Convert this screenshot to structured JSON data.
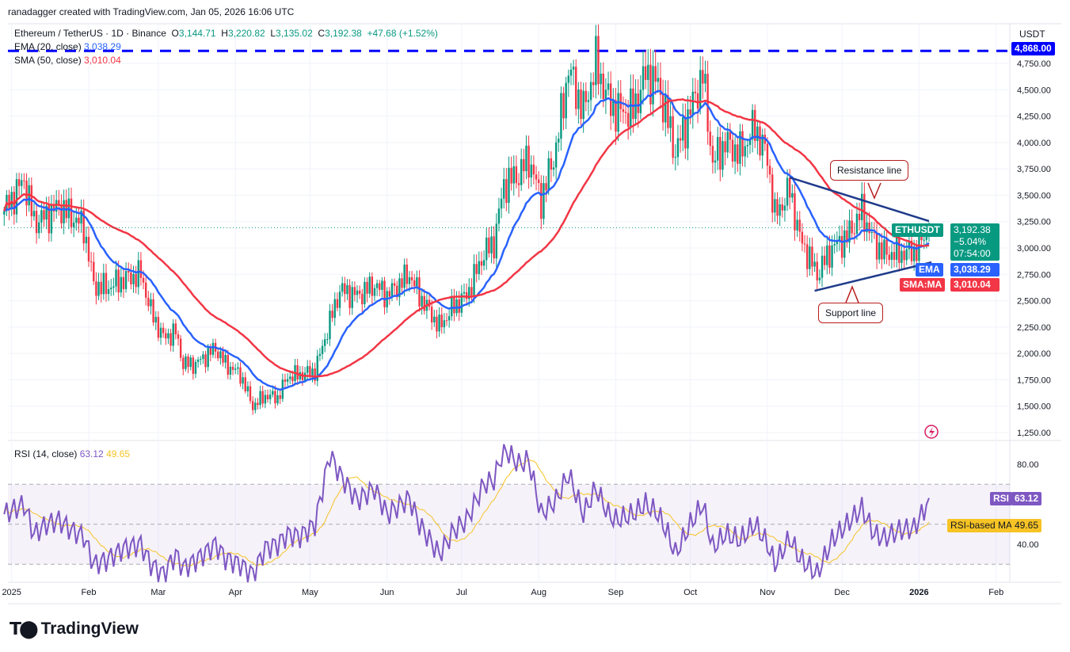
{
  "header": "ranadagger created with TradingView.com, Jan 05, 2026 16:06 UTC",
  "symbol": {
    "name": "Ethereum / TetherUS · 1D · Binance",
    "o_label": "O",
    "o": "3,144.71",
    "h_label": "H",
    "h": "3,220.82",
    "l_label": "L",
    "l": "3,135.02",
    "c_label": "C",
    "c": "3,192.38",
    "change": "+47.68 (+1.52%)"
  },
  "indicators": {
    "ema_label": "EMA (20, close)",
    "ema_value": "3,038.29",
    "sma_label": "SMA (50, close)",
    "sma_value": "3,010.04",
    "rsi_label": "RSI (14, close)",
    "rsi_value": "63.12",
    "rsi_ma_value": "49.65"
  },
  "axis_tags": {
    "currency": "USDT",
    "level": "4,868.00",
    "ticker": "ETHUSDT",
    "price": "3,192.38",
    "pct": "−5.04%",
    "countdown": "07:54:00",
    "ema": "EMA",
    "ema_price": "3,038.29",
    "sma": "SMA:MA",
    "sma_price": "3,010.04",
    "rsi": "RSI",
    "rsi_price": "63.12",
    "rsi_ma": "RSI-based MA",
    "rsi_ma_price": "49.65"
  },
  "annotations": {
    "resistance": "Resistance line",
    "support": "Support line"
  },
  "colors": {
    "up": "#089981",
    "down": "#f23645",
    "ema": "#2962ff",
    "sma": "#f23645",
    "rsi": "#7e57c2",
    "rsi_ma": "#f7c325",
    "level": "#0000ff",
    "trend": "#1e3a8a"
  },
  "brand": "TradingView",
  "chart_data": {
    "type": "candlestick",
    "price_ticks": [
      1250,
      1500,
      1750,
      2000,
      2250,
      2500,
      2750,
      3000,
      3250,
      3500,
      3750,
      4000,
      4250,
      4500,
      4750
    ],
    "price_tick_labels": [
      "1,250.00",
      "1,500.00",
      "1,750.00",
      "2,000.00",
      "2,250.00",
      "2,500.00",
      "2,750.00",
      "3,000.00",
      "3,250.00",
      "3,500.00",
      "3,750.00",
      "4,000.00",
      "4,250.00",
      "4,500.00",
      "4,750.00"
    ],
    "horizontal_level": 4868,
    "time_ticks": [
      [
        "2025-01-01",
        "2025"
      ],
      [
        "2025-02-01",
        "Feb"
      ],
      [
        "2025-03-01",
        "Mar"
      ],
      [
        "2025-04-01",
        "Apr"
      ],
      [
        "2025-05-01",
        "May"
      ],
      [
        "2025-06-01",
        "Jun"
      ],
      [
        "2025-07-01",
        "Jul"
      ],
      [
        "2025-08-01",
        "Aug"
      ],
      [
        "2025-09-01",
        "Sep"
      ],
      [
        "2025-10-01",
        "Oct"
      ],
      [
        "2025-11-01",
        "Nov"
      ],
      [
        "2025-12-01",
        "Dec"
      ],
      [
        "2026-01-01",
        "2026"
      ],
      [
        "2026-02-01",
        "Feb"
      ]
    ],
    "rsi_ticks": [
      40,
      80
    ],
    "rsi_tick_labels": [
      "40.00",
      "80.00"
    ],
    "rsi_bands": [
      70,
      50,
      30
    ],
    "resistance_line": [
      [
        "2025-11-10",
        3668
      ],
      [
        "2026-01-05",
        3255
      ]
    ],
    "support_line": [
      [
        "2025-11-20",
        2594
      ],
      [
        "2026-01-06",
        2864
      ]
    ],
    "closes": [
      [
        "2024-12-29",
        3350
      ],
      [
        "2025-01-06",
        3650
      ],
      [
        "2025-01-10",
        3250
      ],
      [
        "2025-01-15",
        3300
      ],
      [
        "2025-01-20",
        3400
      ],
      [
        "2025-01-25",
        3300
      ],
      [
        "2025-01-30",
        3200
      ],
      [
        "2025-02-03",
        2650
      ],
      [
        "2025-02-08",
        2620
      ],
      [
        "2025-02-15",
        2700
      ],
      [
        "2025-02-22",
        2750
      ],
      [
        "2025-02-26",
        2400
      ],
      [
        "2025-03-03",
        2150
      ],
      [
        "2025-03-08",
        2200
      ],
      [
        "2025-03-11",
        1900
      ],
      [
        "2025-03-16",
        1900
      ],
      [
        "2025-03-24",
        2050
      ],
      [
        "2025-03-28",
        1900
      ],
      [
        "2025-04-03",
        1800
      ],
      [
        "2025-04-08",
        1500
      ],
      [
        "2025-04-13",
        1600
      ],
      [
        "2025-04-18",
        1580
      ],
      [
        "2025-04-22",
        1780
      ],
      [
        "2025-04-27",
        1800
      ],
      [
        "2025-05-03",
        1830
      ],
      [
        "2025-05-09",
        2300
      ],
      [
        "2025-05-13",
        2600
      ],
      [
        "2025-05-20",
        2550
      ],
      [
        "2025-05-27",
        2650
      ],
      [
        "2025-06-01",
        2550
      ],
      [
        "2025-06-10",
        2750
      ],
      [
        "2025-06-14",
        2550
      ],
      [
        "2025-06-22",
        2250
      ],
      [
        "2025-06-28",
        2450
      ],
      [
        "2025-07-03",
        2550
      ],
      [
        "2025-07-10",
        2950
      ],
      [
        "2025-07-14",
        3050
      ],
      [
        "2025-07-18",
        3600
      ],
      [
        "2025-07-24",
        3700
      ],
      [
        "2025-07-28",
        3850
      ],
      [
        "2025-08-02",
        3450
      ],
      [
        "2025-08-08",
        3950
      ],
      [
        "2025-08-13",
        4700
      ],
      [
        "2025-08-19",
        4300
      ],
      [
        "2025-08-24",
        4750
      ],
      [
        "2025-08-29",
        4400
      ],
      [
        "2025-09-01",
        4300
      ],
      [
        "2025-09-08",
        4300
      ],
      [
        "2025-09-13",
        4650
      ],
      [
        "2025-09-18",
        4550
      ],
      [
        "2025-09-22",
        4200
      ],
      [
        "2025-09-25",
        3900
      ],
      [
        "2025-10-01",
        4300
      ],
      [
        "2025-10-06",
        4650
      ],
      [
        "2025-10-10",
        3800
      ],
      [
        "2025-10-15",
        4000
      ],
      [
        "2025-10-21",
        3900
      ],
      [
        "2025-10-27",
        4150
      ],
      [
        "2025-11-01",
        3850
      ],
      [
        "2025-11-04",
        3300
      ],
      [
        "2025-11-10",
        3550
      ],
      [
        "2025-11-14",
        3100
      ],
      [
        "2025-11-21",
        2750
      ],
      [
        "2025-11-27",
        3000
      ],
      [
        "2025-12-03",
        3100
      ],
      [
        "2025-12-09",
        3350
      ],
      [
        "2025-12-14",
        3050
      ],
      [
        "2025-12-18",
        2950
      ],
      [
        "2025-12-24",
        2950
      ],
      [
        "2025-12-30",
        2970
      ],
      [
        "2026-01-03",
        3100
      ],
      [
        "2026-01-05",
        3192
      ]
    ],
    "rsi": [
      55,
      60,
      45,
      50,
      52,
      47,
      44,
      30,
      32,
      38,
      40,
      30,
      25,
      35,
      28,
      32,
      40,
      33,
      30,
      25,
      38,
      40,
      45,
      44,
      50,
      85,
      75,
      62,
      68,
      55,
      63,
      50,
      35,
      47,
      52,
      70,
      72,
      88,
      80,
      82,
      55,
      62,
      75,
      55,
      68,
      55,
      52,
      55,
      60,
      55,
      45,
      35,
      50,
      60,
      38,
      45,
      42,
      50,
      40,
      30,
      43,
      33,
      25,
      42,
      50,
      58,
      45,
      43,
      47,
      48,
      57,
      63
    ]
  }
}
